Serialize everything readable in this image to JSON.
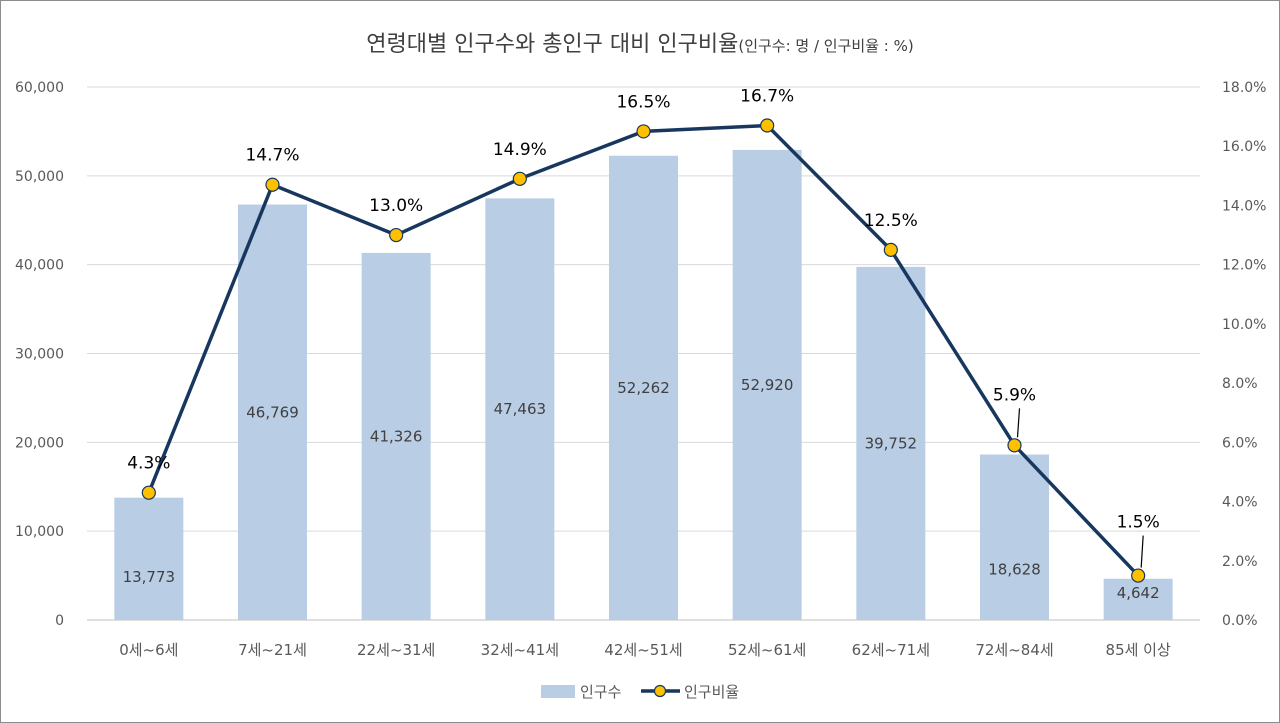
{
  "chart_data": {
    "type": "bar+line",
    "title": "연령대별 인구수와 총인구 대비 인구비율",
    "subtitle": "(인구수: 명 / 인구비율 : %)",
    "categories": [
      "0세~6세",
      "7세~21세",
      "22세~31세",
      "32세~41세",
      "42세~51세",
      "52세~61세",
      "62세~71세",
      "72세~84세",
      "85세 이상"
    ],
    "series": [
      {
        "name": "인구수",
        "type": "bar",
        "axis": "left",
        "color": "#b9cde5",
        "values": [
          13773,
          46769,
          41326,
          47463,
          52262,
          52920,
          39752,
          18628,
          4642
        ],
        "labels": [
          "13,773",
          "46,769",
          "41,326",
          "47,463",
          "52,262",
          "52,920",
          "39,752",
          "18,628",
          "4,642"
        ]
      },
      {
        "name": "인구비율",
        "type": "line",
        "axis": "right",
        "color": "#17375e",
        "marker_color": "#ffc000",
        "values": [
          4.3,
          14.7,
          13.0,
          14.9,
          16.5,
          16.7,
          12.5,
          5.9,
          1.5
        ],
        "labels": [
          "4.3%",
          "14.7%",
          "13.0%",
          "14.9%",
          "16.5%",
          "16.7%",
          "12.5%",
          "5.9%",
          "1.5%"
        ]
      }
    ],
    "y_left": {
      "min": 0,
      "max": 60000,
      "ticks": [
        "0",
        "10,000",
        "20,000",
        "30,000",
        "40,000",
        "50,000",
        "60,000"
      ]
    },
    "y_right": {
      "min": 0,
      "max": 18,
      "ticks": [
        "0.0%",
        "2.0%",
        "4.0%",
        "6.0%",
        "8.0%",
        "10.0%",
        "12.0%",
        "14.0%",
        "16.0%",
        "18.0%"
      ]
    },
    "grid": true,
    "legend_position": "bottom"
  }
}
